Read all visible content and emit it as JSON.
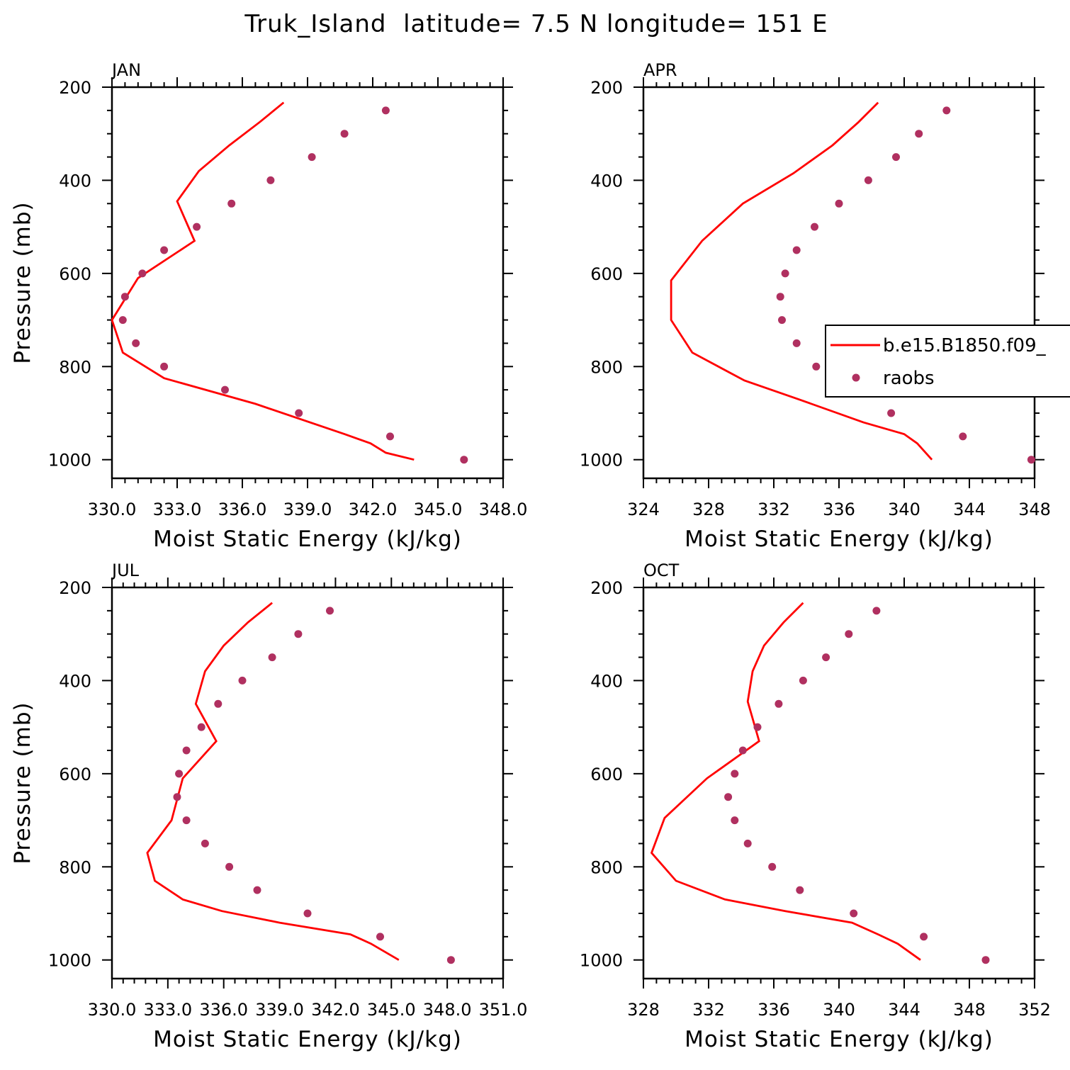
{
  "title": "Truk_Island  latitude= 7.5 N longitude= 151 E",
  "colors": {
    "model": "#ff0000",
    "raobs": "#b03060",
    "axes": "#000000"
  },
  "legend": {
    "placement": "right, APR panel",
    "model_label": "b.e15.B1850.f09_",
    "raobs_label": "raobs"
  },
  "chart_data": [
    {
      "type": "line",
      "title": "JAN",
      "xlabel": "Moist Static Energy (kJ/kg)",
      "ylabel": "Pressure (mb)",
      "xlim": [
        330,
        348
      ],
      "ylim": [
        1040,
        200
      ],
      "y_inverted": true,
      "xticks": [
        "330.0",
        "333.0",
        "336.0",
        "339.0",
        "342.0",
        "345.0",
        "348.0"
      ],
      "xtick_values": [
        330,
        333,
        336,
        339,
        342,
        345,
        348
      ],
      "yticks": [
        "200",
        "400",
        "600",
        "800",
        "1000"
      ],
      "ytick_values": [
        200,
        400,
        600,
        800,
        1000
      ],
      "series": [
        {
          "name": "b.e15.B1850.f09_",
          "style": "line",
          "x": [
            337.9,
            336.8,
            335.4,
            334.0,
            333.0,
            333.8,
            331.2,
            330.0,
            330.5,
            332.4,
            336.6,
            340.7,
            341.9,
            342.6,
            343.9
          ],
          "y": [
            233,
            275,
            325,
            380,
            445,
            530,
            610,
            700,
            770,
            825,
            880,
            945,
            965,
            985,
            1000
          ]
        },
        {
          "name": "raobs",
          "style": "markers",
          "x": [
            342.6,
            340.7,
            339.2,
            337.3,
            335.5,
            333.9,
            332.4,
            331.4,
            330.6,
            330.5,
            331.1,
            332.4,
            335.2,
            338.6,
            342.8,
            346.2
          ],
          "y": [
            250,
            300,
            350,
            400,
            450,
            500,
            550,
            600,
            650,
            700,
            750,
            800,
            850,
            900,
            950,
            1000
          ]
        }
      ]
    },
    {
      "type": "line",
      "title": "APR",
      "xlabel": "Moist Static Energy (kJ/kg)",
      "ylabel": "",
      "xlim": [
        324,
        348
      ],
      "ylim": [
        1040,
        200
      ],
      "y_inverted": true,
      "xticks": [
        "324",
        "328",
        "332",
        "336",
        "340",
        "344",
        "348"
      ],
      "xtick_values": [
        324,
        328,
        332,
        336,
        340,
        344,
        348
      ],
      "yticks": [
        "200",
        "400",
        "600",
        "800",
        "1000"
      ],
      "ytick_values": [
        200,
        400,
        600,
        800,
        1000
      ],
      "series": [
        {
          "name": "b.e15.B1850.f09_",
          "style": "line",
          "x": [
            338.4,
            337.2,
            335.6,
            333.2,
            330.1,
            327.6,
            325.7,
            325.7,
            327.0,
            330.2,
            333.5,
            337.5,
            340.0,
            340.8,
            341.7
          ],
          "y": [
            233,
            275,
            325,
            385,
            450,
            530,
            615,
            700,
            770,
            830,
            870,
            920,
            945,
            965,
            1000
          ]
        },
        {
          "name": "raobs",
          "style": "markers",
          "x": [
            342.6,
            340.9,
            339.5,
            337.8,
            336.0,
            334.5,
            333.4,
            332.7,
            332.4,
            332.5,
            333.4,
            334.6,
            336.4,
            339.2,
            343.6,
            347.8
          ],
          "y": [
            250,
            300,
            350,
            400,
            450,
            500,
            550,
            600,
            650,
            700,
            750,
            800,
            850,
            900,
            950,
            1000
          ]
        }
      ]
    },
    {
      "type": "line",
      "title": "JUL",
      "xlabel": "Moist Static Energy (kJ/kg)",
      "ylabel": "Pressure (mb)",
      "xlim": [
        330,
        351
      ],
      "ylim": [
        1040,
        200
      ],
      "y_inverted": true,
      "xticks": [
        "330.0",
        "333.0",
        "336.0",
        "339.0",
        "342.0",
        "345.0",
        "348.0",
        "351.0"
      ],
      "xtick_values": [
        330,
        333,
        336,
        339,
        342,
        345,
        348,
        351
      ],
      "yticks": [
        "200",
        "400",
        "600",
        "800",
        "1000"
      ],
      "ytick_values": [
        200,
        400,
        600,
        800,
        1000
      ],
      "series": [
        {
          "name": "b.e15.B1850.f09_",
          "style": "line",
          "x": [
            338.6,
            337.3,
            336.0,
            335.0,
            334.5,
            335.6,
            333.8,
            333.2,
            331.9,
            332.3,
            333.8,
            335.9,
            339.0,
            342.8,
            343.9,
            345.4
          ],
          "y": [
            233,
            275,
            325,
            380,
            450,
            530,
            610,
            700,
            770,
            830,
            870,
            895,
            920,
            945,
            965,
            1000
          ]
        },
        {
          "name": "raobs",
          "style": "markers",
          "x": [
            341.7,
            340.0,
            338.6,
            337.0,
            335.7,
            334.8,
            334.0,
            333.6,
            333.5,
            334.0,
            335.0,
            336.3,
            337.8,
            340.5,
            344.4,
            348.2
          ],
          "y": [
            250,
            300,
            350,
            400,
            450,
            500,
            550,
            600,
            650,
            700,
            750,
            800,
            850,
            900,
            950,
            1000
          ]
        }
      ]
    },
    {
      "type": "line",
      "title": "OCT",
      "xlabel": "Moist Static Energy (kJ/kg)",
      "ylabel": "",
      "xlim": [
        328,
        352
      ],
      "ylim": [
        1040,
        200
      ],
      "y_inverted": true,
      "xticks": [
        "328",
        "332",
        "336",
        "340",
        "344",
        "348",
        "352"
      ],
      "xtick_values": [
        328,
        332,
        336,
        340,
        344,
        348,
        352
      ],
      "yticks": [
        "200",
        "400",
        "600",
        "800",
        "1000"
      ],
      "ytick_values": [
        200,
        400,
        600,
        800,
        1000
      ],
      "series": [
        {
          "name": "b.e15.B1850.f09_",
          "style": "line",
          "x": [
            337.8,
            336.6,
            335.4,
            334.7,
            334.4,
            335.1,
            331.9,
            329.3,
            328.5,
            330.0,
            333.0,
            336.7,
            340.8,
            342.4,
            343.6,
            345.0
          ],
          "y": [
            233,
            275,
            325,
            380,
            445,
            530,
            610,
            695,
            770,
            830,
            870,
            895,
            920,
            945,
            965,
            1000
          ]
        },
        {
          "name": "raobs",
          "style": "markers",
          "x": [
            342.3,
            340.6,
            339.2,
            337.8,
            336.3,
            335.0,
            334.1,
            333.6,
            333.2,
            333.6,
            334.4,
            335.9,
            337.6,
            340.9,
            345.2,
            349.0
          ],
          "y": [
            250,
            300,
            350,
            400,
            450,
            500,
            550,
            600,
            650,
            700,
            750,
            800,
            850,
            900,
            950,
            1000
          ]
        }
      ]
    }
  ]
}
